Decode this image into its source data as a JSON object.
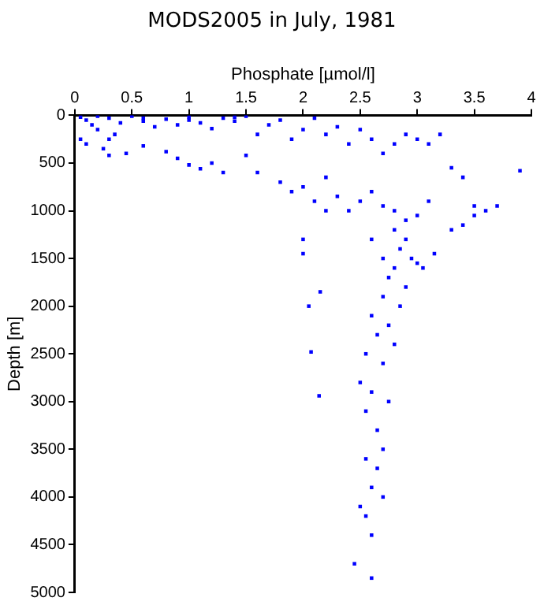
{
  "chart_data": {
    "type": "scatter",
    "title": "MODS2005 in July, 1981",
    "xlabel": "Phosphate [µmol/l]",
    "ylabel": "Depth [m]",
    "xlim": [
      0,
      4
    ],
    "xticks": [
      0,
      0.5,
      1,
      1.5,
      2,
      2.5,
      3,
      3.5,
      4
    ],
    "ylim": [
      5000,
      0
    ],
    "yticks": [
      0,
      500,
      1000,
      1500,
      2000,
      2500,
      3000,
      3500,
      4000,
      4500,
      5000
    ],
    "grid": false,
    "legend": false,
    "marker": "square",
    "series": [
      {
        "color": "#0000ff",
        "x": [
          0.05,
          0.1,
          0.15,
          0.2,
          0.3,
          0.35,
          0.4,
          0.5,
          0.6,
          0.7,
          0.8,
          0.9,
          1.0,
          1.1,
          1.2,
          1.3,
          1.4,
          1.5,
          0.1,
          0.25,
          0.3,
          0.45,
          0.6,
          0.8,
          0.9,
          1.0,
          1.2,
          1.3,
          1.1,
          1.5,
          1.6,
          1.7,
          1.8,
          1.9,
          2.0,
          2.1,
          2.2,
          2.3,
          2.4,
          2.5,
          2.6,
          2.7,
          2.8,
          2.9,
          3.0,
          3.1,
          3.2,
          3.3,
          3.4,
          3.5,
          3.6,
          3.7,
          3.9,
          1.6,
          1.8,
          1.9,
          2.0,
          2.1,
          2.2,
          2.3,
          2.4,
          2.5,
          2.6,
          2.7,
          2.8,
          2.9,
          3.0,
          3.1,
          3.3,
          3.4,
          3.5,
          2.8,
          2.9,
          2.85,
          2.95,
          2.8,
          3.0,
          2.75,
          2.9,
          2.7,
          2.85,
          2.6,
          2.75,
          2.65,
          2.8,
          2.55,
          2.7,
          2.5,
          2.6,
          2.75,
          2.55,
          2.65,
          2.7,
          2.55,
          2.65,
          2.6,
          2.7,
          2.5,
          2.55,
          2.6,
          2.45,
          2.6,
          2.05,
          2.07,
          2.14,
          2.15,
          2.0,
          2.0,
          2.2,
          2.6,
          2.7,
          3.05,
          3.15,
          0.2,
          0.6,
          1.0,
          1.4,
          0.05,
          0.3
        ],
        "values": [
          20,
          50,
          100,
          150,
          30,
          200,
          80,
          10,
          60,
          120,
          40,
          100,
          20,
          80,
          140,
          30,
          60,
          10,
          300,
          350,
          420,
          400,
          320,
          380,
          450,
          520,
          500,
          600,
          560,
          420,
          200,
          100,
          50,
          250,
          150,
          30,
          200,
          120,
          300,
          150,
          250,
          400,
          300,
          200,
          250,
          300,
          200,
          550,
          650,
          950,
          1000,
          950,
          580,
          600,
          700,
          800,
          750,
          900,
          650,
          850,
          1000,
          900,
          800,
          950,
          1000,
          1100,
          1050,
          900,
          1200,
          1150,
          1050,
          1200,
          1300,
          1400,
          1500,
          1600,
          1550,
          1700,
          1800,
          1900,
          2000,
          2100,
          2200,
          2300,
          2400,
          2500,
          2600,
          2800,
          2900,
          3000,
          3100,
          3300,
          3500,
          3600,
          3700,
          3900,
          4000,
          4100,
          4200,
          4400,
          4700,
          4850,
          2000,
          2480,
          2940,
          1850,
          1450,
          1300,
          1000,
          1300,
          1500,
          1600,
          1450,
          10,
          30,
          50,
          20,
          250,
          250
        ]
      }
    ]
  }
}
